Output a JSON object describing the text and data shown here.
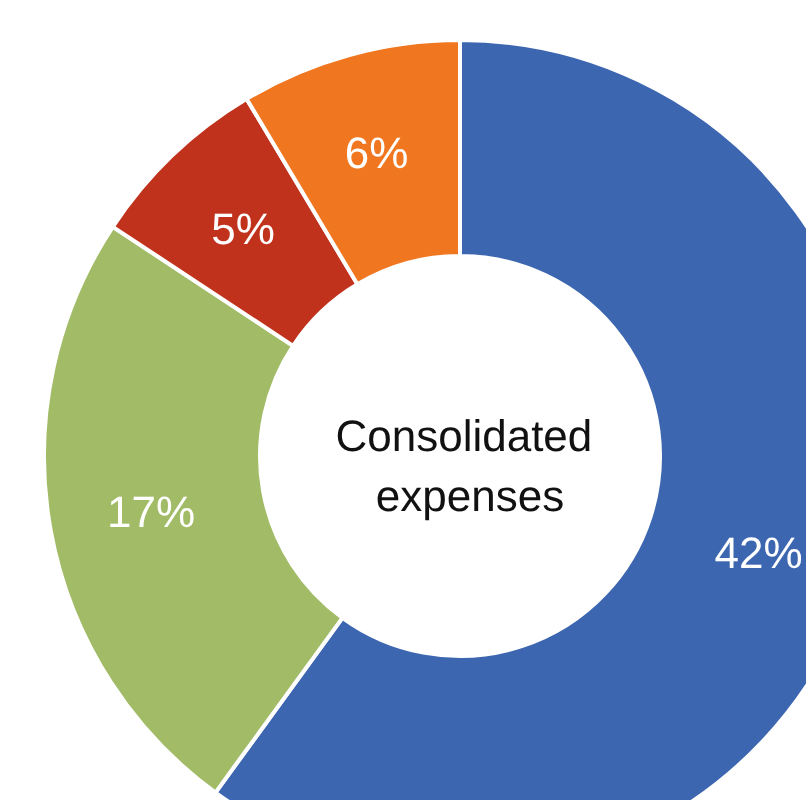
{
  "chart_data": {
    "type": "donut",
    "title": "Consolidated expenses",
    "categories": [
      null,
      null,
      null,
      null
    ],
    "values": [
      42,
      17,
      5,
      6
    ],
    "value_labels": [
      "42%",
      "17%",
      "5%",
      "6%"
    ],
    "colors": [
      "#3d66b0",
      "#a2bb67",
      "#c0321c",
      "#f07620"
    ]
  }
}
